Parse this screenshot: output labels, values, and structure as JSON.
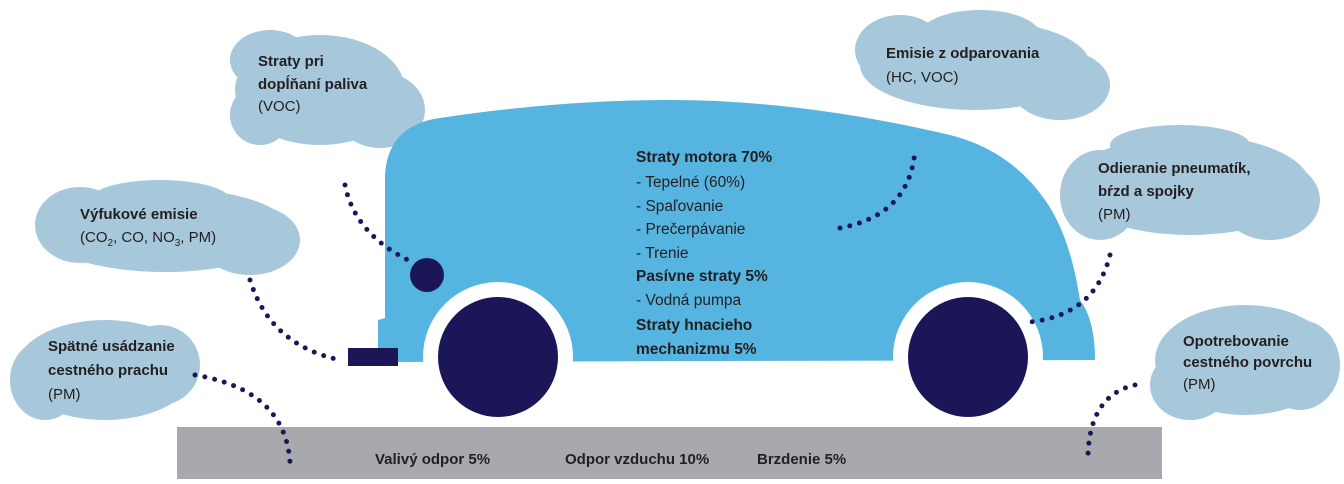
{
  "clouds": {
    "refuel": {
      "title": [
        "Straty pri",
        "dopĺňaní paliva"
      ],
      "subtitle": "(VOC)"
    },
    "evaporation": {
      "title": [
        "Emisie z odparovania"
      ],
      "subtitle": "(HC, VOC)"
    },
    "exhaust": {
      "title": [
        "Výfukové emisie"
      ],
      "subtitle_parts": [
        "(CO",
        "2",
        ", CO, NO",
        "3",
        ", PM)"
      ]
    },
    "wear": {
      "title": [
        "Odieranie pneumatík,",
        "bŕzd a spojky"
      ],
      "subtitle": "(PM)"
    },
    "dust": {
      "title": [
        "Spätné usádzanie",
        "cestného prachu"
      ],
      "subtitle": "(PM)"
    },
    "road_wear": {
      "title": [
        "Opotrebovanie",
        "cestného povrchu"
      ],
      "subtitle": "(PM)"
    }
  },
  "engine_losses": [
    "Straty motora 70%",
    "- Tepelné (60%)",
    "- Spaľovanie",
    "- Prečerpávanie",
    "- Trenie",
    "Pasívne straty 5%",
    "- Vodná pumpa",
    "Straty hnacieho",
    "mechanizmu 5%"
  ],
  "road": [
    "Valivý odpor 5%",
    "Odpor vzduchu 10%",
    "Brzdenie 5%"
  ]
}
